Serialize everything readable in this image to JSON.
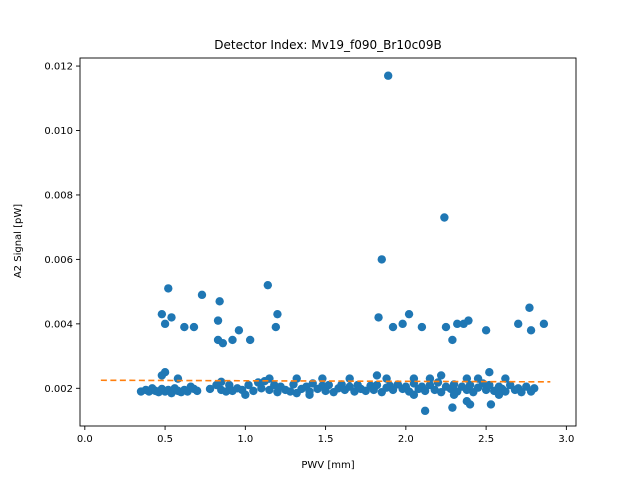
{
  "chart_data": {
    "type": "scatter",
    "title": "Detector Index: Mv19_f090_Br10c09B",
    "xlabel": "PWV [mm]",
    "ylabel": "A2 Signal [pW]",
    "xlim": [
      -0.03,
      3.06
    ],
    "ylim": [
      0.00083,
      0.01225
    ],
    "xticks": [
      0.0,
      0.5,
      1.0,
      1.5,
      2.0,
      2.5,
      3.0
    ],
    "xtick_labels": [
      "0.0",
      "0.5",
      "1.0",
      "1.5",
      "2.0",
      "2.5",
      "3.0"
    ],
    "yticks": [
      0.002,
      0.004,
      0.006,
      0.008,
      0.01,
      0.012
    ],
    "ytick_labels": [
      "0.002",
      "0.004",
      "0.006",
      "0.008",
      "0.010",
      "0.012"
    ],
    "colors": {
      "scatter": "#1f77b4",
      "fit": "#ff7f0e"
    },
    "series": [
      {
        "name": "measurements",
        "kind": "scatter",
        "points": [
          [
            0.35,
            0.0019
          ],
          [
            0.38,
            0.00195
          ],
          [
            0.4,
            0.0019
          ],
          [
            0.42,
            0.002
          ],
          [
            0.44,
            0.00192
          ],
          [
            0.46,
            0.00188
          ],
          [
            0.48,
            0.00198
          ],
          [
            0.5,
            0.0019
          ],
          [
            0.52,
            0.00195
          ],
          [
            0.54,
            0.00185
          ],
          [
            0.56,
            0.002
          ],
          [
            0.58,
            0.00192
          ],
          [
            0.6,
            0.00188
          ],
          [
            0.62,
            0.00195
          ],
          [
            0.64,
            0.0019
          ],
          [
            0.66,
            0.00205
          ],
          [
            0.68,
            0.00198
          ],
          [
            0.7,
            0.00192
          ],
          [
            0.78,
            0.00198
          ],
          [
            0.82,
            0.0021
          ],
          [
            0.85,
            0.00195
          ],
          [
            0.88,
            0.0019
          ],
          [
            0.9,
            0.0021
          ],
          [
            0.92,
            0.00192
          ],
          [
            0.95,
            0.002
          ],
          [
            0.98,
            0.00195
          ],
          [
            1.02,
            0.0021
          ],
          [
            1.05,
            0.00192
          ],
          [
            1.08,
            0.00218
          ],
          [
            1.1,
            0.002
          ],
          [
            1.12,
            0.00222
          ],
          [
            1.15,
            0.00195
          ],
          [
            1.18,
            0.0021
          ],
          [
            1.2,
            0.00188
          ],
          [
            1.22,
            0.00205
          ],
          [
            1.25,
            0.00195
          ],
          [
            1.28,
            0.0019
          ],
          [
            1.3,
            0.00212
          ],
          [
            1.32,
            0.00185
          ],
          [
            1.35,
            0.00198
          ],
          [
            1.38,
            0.00205
          ],
          [
            1.4,
            0.0019
          ],
          [
            1.42,
            0.00215
          ],
          [
            1.45,
            0.00198
          ],
          [
            1.48,
            0.00208
          ],
          [
            1.5,
            0.00192
          ],
          [
            1.52,
            0.0021
          ],
          [
            1.55,
            0.00188
          ],
          [
            1.58,
            0.002
          ],
          [
            1.6,
            0.00212
          ],
          [
            1.62,
            0.00195
          ],
          [
            1.65,
            0.00205
          ],
          [
            1.68,
            0.0019
          ],
          [
            1.7,
            0.0021
          ],
          [
            1.72,
            0.00198
          ],
          [
            1.75,
            0.00192
          ],
          [
            1.78,
            0.00208
          ],
          [
            1.8,
            0.00195
          ],
          [
            1.82,
            0.0021
          ],
          [
            1.85,
            0.00188
          ],
          [
            1.88,
            0.00202
          ],
          [
            1.9,
            0.00208
          ],
          [
            1.92,
            0.00195
          ],
          [
            1.95,
            0.00212
          ],
          [
            1.98,
            0.00198
          ],
          [
            2.0,
            0.00205
          ],
          [
            2.02,
            0.0019
          ],
          [
            2.05,
            0.00215
          ],
          [
            2.08,
            0.00198
          ],
          [
            2.1,
            0.00205
          ],
          [
            2.12,
            0.00192
          ],
          [
            2.15,
            0.0021
          ],
          [
            2.18,
            0.00195
          ],
          [
            2.2,
            0.00218
          ],
          [
            2.22,
            0.00188
          ],
          [
            2.25,
            0.00205
          ],
          [
            2.28,
            0.00198
          ],
          [
            2.3,
            0.00212
          ],
          [
            2.32,
            0.0019
          ],
          [
            2.35,
            0.00205
          ],
          [
            2.38,
            0.00195
          ],
          [
            2.4,
            0.0021
          ],
          [
            2.42,
            0.00188
          ],
          [
            2.45,
            0.00202
          ],
          [
            2.48,
            0.00215
          ],
          [
            2.5,
            0.00195
          ],
          [
            2.52,
            0.0021
          ],
          [
            2.55,
            0.00192
          ],
          [
            2.58,
            0.00205
          ],
          [
            2.6,
            0.00198
          ],
          [
            2.62,
            0.0019
          ],
          [
            2.65,
            0.0021
          ],
          [
            2.68,
            0.00195
          ],
          [
            2.7,
            0.002
          ],
          [
            2.72,
            0.00188
          ],
          [
            2.75,
            0.00205
          ],
          [
            2.78,
            0.0019
          ],
          [
            2.8,
            0.002
          ],
          [
            0.48,
            0.0024
          ],
          [
            0.5,
            0.0025
          ],
          [
            0.58,
            0.0023
          ],
          [
            0.85,
            0.0022
          ],
          [
            1.15,
            0.0023
          ],
          [
            1.32,
            0.0023
          ],
          [
            1.48,
            0.0023
          ],
          [
            1.65,
            0.0023
          ],
          [
            1.82,
            0.0024
          ],
          [
            1.88,
            0.0023
          ],
          [
            2.05,
            0.0023
          ],
          [
            2.15,
            0.0023
          ],
          [
            2.22,
            0.0024
          ],
          [
            2.38,
            0.0023
          ],
          [
            2.45,
            0.0023
          ],
          [
            2.52,
            0.0025
          ],
          [
            2.62,
            0.0023
          ],
          [
            1.0,
            0.0018
          ],
          [
            1.4,
            0.0018
          ],
          [
            2.05,
            0.0018
          ],
          [
            2.3,
            0.0018
          ],
          [
            2.58,
            0.0018
          ],
          [
            2.12,
            0.0013
          ],
          [
            2.29,
            0.0014
          ],
          [
            2.38,
            0.0016
          ],
          [
            2.53,
            0.0015
          ],
          [
            2.4,
            0.0015
          ],
          [
            0.48,
            0.0043
          ],
          [
            0.5,
            0.004
          ],
          [
            0.52,
            0.0051
          ],
          [
            0.54,
            0.0042
          ],
          [
            0.62,
            0.0039
          ],
          [
            0.68,
            0.0039
          ],
          [
            0.73,
            0.0049
          ],
          [
            0.83,
            0.0041
          ],
          [
            0.84,
            0.0047
          ],
          [
            0.83,
            0.0035
          ],
          [
            0.86,
            0.0034
          ],
          [
            0.92,
            0.0035
          ],
          [
            0.96,
            0.0038
          ],
          [
            1.03,
            0.0035
          ],
          [
            1.14,
            0.0052
          ],
          [
            1.19,
            0.0039
          ],
          [
            1.2,
            0.0043
          ],
          [
            1.83,
            0.0042
          ],
          [
            1.85,
            0.006
          ],
          [
            1.89,
            0.0117
          ],
          [
            1.92,
            0.0039
          ],
          [
            1.98,
            0.004
          ],
          [
            2.02,
            0.0043
          ],
          [
            2.1,
            0.0039
          ],
          [
            2.24,
            0.0073
          ],
          [
            2.25,
            0.0039
          ],
          [
            2.29,
            0.0035
          ],
          [
            2.32,
            0.004
          ],
          [
            2.36,
            0.004
          ],
          [
            2.39,
            0.0041
          ],
          [
            2.5,
            0.0038
          ],
          [
            2.7,
            0.004
          ],
          [
            2.77,
            0.0045
          ],
          [
            2.78,
            0.0038
          ],
          [
            2.86,
            0.004
          ]
        ]
      },
      {
        "name": "fit",
        "kind": "line",
        "style": "dashed",
        "x": [
          0.1,
          2.9
        ],
        "y": [
          0.00225,
          0.0022
        ]
      }
    ]
  }
}
